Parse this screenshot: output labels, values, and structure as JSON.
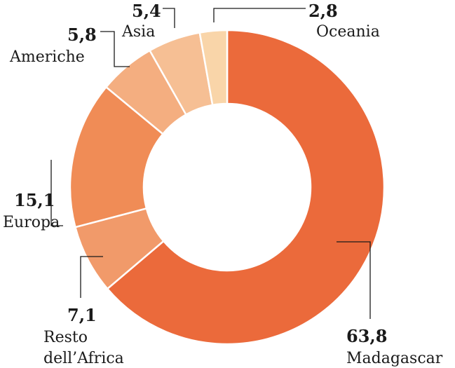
{
  "chart_data": {
    "type": "pie",
    "donut": true,
    "categories": [
      "Madagascar",
      "Resto dell’Africa",
      "Europa",
      "Americhe",
      "Asia",
      "Oceania"
    ],
    "values": [
      63.8,
      7.1,
      15.1,
      5.8,
      5.4,
      2.8
    ],
    "value_labels": [
      "63,8",
      "7,1",
      "15,1",
      "5,8",
      "5,4",
      "2,8"
    ],
    "label_lines": [
      [
        "Madagascar"
      ],
      [
        "Resto",
        "dell’Africa"
      ],
      [
        "Europa"
      ],
      [
        "Americhe"
      ],
      [
        "Asia"
      ],
      [
        "Oceania"
      ]
    ],
    "colors": [
      "#eb6a3b",
      "#f19a6a",
      "#f08c56",
      "#f4ae80",
      "#f6bf94",
      "#f9d5a9"
    ],
    "title": "",
    "legend": "none"
  }
}
